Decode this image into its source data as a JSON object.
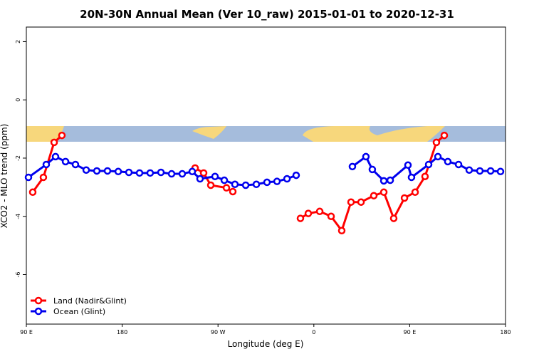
{
  "chart_data": {
    "type": "line",
    "title": "20N-30N Annual Mean (Ver 10_raw)   2015-01-01 to 2020-12-31",
    "x_label": "Longitude (deg E)",
    "y_label": "XCO2 - MLO trend (ppm)",
    "xlim": [
      90,
      540
    ],
    "xticks": [
      {
        "value": 90,
        "label": "90 E"
      },
      {
        "value": 180,
        "label": "180"
      },
      {
        "value": 270,
        "label": "90 W"
      },
      {
        "value": 360,
        "label": "0"
      },
      {
        "value": 450,
        "label": "90 E"
      },
      {
        "value": 540,
        "label": "180"
      }
    ],
    "ylim": [
      -7.7,
      2.5
    ],
    "yticks": [
      -6,
      -4,
      -2,
      0,
      2
    ],
    "legend": "bottom-left",
    "series": [
      {
        "name": "Land (Nadir&Glint)",
        "color": "#ff0000",
        "x": [
          96.0,
          106.0,
          116.1,
          123.4,
          null,
          248.5,
          256.5,
          263.2,
          277.9,
          283.9,
          null,
          347.4,
          354.8,
          365.5,
          376.2,
          386.2,
          394.9,
          404.3,
          416.3,
          425.7,
          435.0,
          445.1,
          455.1,
          464.4,
          475.1,
          482.5
        ],
        "values": [
          -3.17,
          -2.66,
          -1.46,
          -1.22,
          null,
          -2.34,
          -2.51,
          -2.93,
          -3.02,
          -3.15,
          null,
          -4.07,
          -3.9,
          -3.83,
          -4.0,
          -4.49,
          -3.51,
          -3.51,
          -3.29,
          -3.17,
          -4.07,
          -3.37,
          -3.17,
          -2.63,
          -1.46,
          -1.22
        ]
      },
      {
        "name": "Ocean (Glint)",
        "color": "#0000ee",
        "x": [
          92.0,
          108.7,
          117.4,
          126.8,
          136.1,
          146.2,
          156.2,
          166.2,
          176.3,
          186.3,
          196.3,
          206.3,
          216.4,
          226.4,
          236.4,
          245.8,
          253.1,
          267.2,
          275.9,
          285.9,
          296.0,
          306.0,
          316.0,
          325.4,
          334.8,
          343.4,
          null,
          396.2,
          408.9,
          414.9,
          425.7,
          431.7,
          448.4,
          451.7,
          467.8,
          476.5,
          485.8,
          495.9,
          505.9,
          515.9,
          526.0,
          535.3
        ],
        "values": [
          -2.66,
          -2.22,
          -1.95,
          -2.12,
          -2.22,
          -2.41,
          -2.44,
          -2.44,
          -2.46,
          -2.49,
          -2.51,
          -2.51,
          -2.49,
          -2.54,
          -2.54,
          -2.46,
          -2.71,
          -2.63,
          -2.76,
          -2.9,
          -2.93,
          -2.9,
          -2.83,
          -2.8,
          -2.71,
          -2.59,
          null,
          -2.29,
          -1.95,
          -2.39,
          -2.78,
          -2.76,
          -2.24,
          -2.66,
          -2.22,
          -1.95,
          -2.12,
          -2.22,
          -2.41,
          -2.44,
          -2.44,
          -2.46
        ]
      }
    ]
  }
}
